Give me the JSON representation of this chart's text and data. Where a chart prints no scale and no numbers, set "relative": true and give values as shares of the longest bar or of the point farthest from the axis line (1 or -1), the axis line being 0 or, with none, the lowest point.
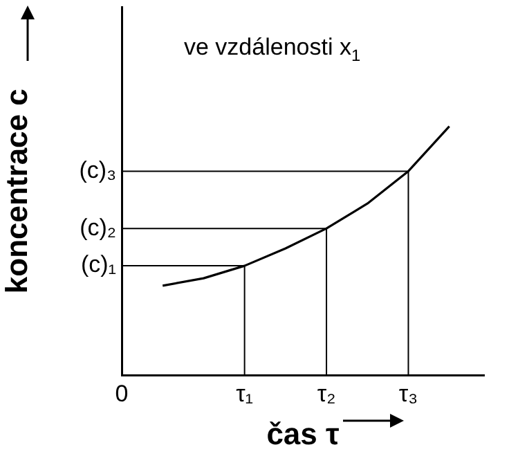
{
  "chart_data": {
    "type": "line",
    "relative": true,
    "xlabel": "čas τ",
    "ylabel": "koncentrace c",
    "annotations": [
      "ve vzdálenosti x$_{1}$"
    ],
    "categories": [
      "0",
      null,
      null,
      "τ₁",
      null,
      "τ₂",
      null,
      "τ₃",
      null
    ],
    "series": [
      {
        "color": "#000000",
        "values": [
          null,
          0.36,
          0.39,
          0.44,
          0.51,
          0.59,
          0.69,
          0.82,
          1
        ]
      }
    ],
    "ref_lines": [
      {
        "axis": "x",
        "value": "τ₁"
      },
      {
        "axis": "x",
        "value": "τ₂"
      },
      {
        "axis": "x",
        "value": "τ₃"
      },
      {
        "axis": "y",
        "value": 0.44,
        "label": "(c)₁"
      },
      {
        "axis": "y",
        "value": 0.59,
        "label": "(c)₂"
      },
      {
        "axis": "y",
        "value": 0.82,
        "label": "(c)₃"
      }
    ],
    "grid": false,
    "legend": false,
    "marker": "none",
    "line_style": "solid"
  }
}
